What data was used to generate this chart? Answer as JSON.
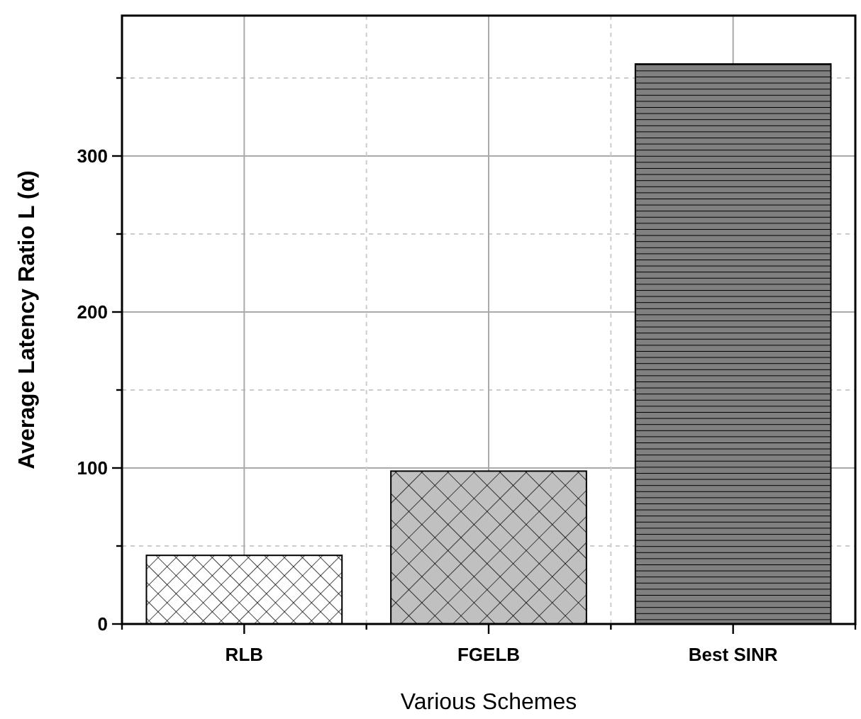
{
  "chart_data": {
    "type": "bar",
    "xlabel": "Various Schemes",
    "ylabel": "Average Latency Ratio L (α)",
    "categories": [
      "RLB",
      "FGELB",
      "Best SINR"
    ],
    "values": [
      44,
      98,
      359
    ],
    "colors": [
      "#ffffff",
      "#c0c0c0",
      "#808080"
    ],
    "ylim": [
      0,
      390
    ],
    "yticks": [
      0,
      {
        "value": 50,
        "label": null
      },
      100,
      {
        "value": 150,
        "label": null
      },
      200,
      {
        "value": 250,
        "label": null
      },
      300,
      {
        "value": 350,
        "label": null
      }
    ],
    "grid": true
  }
}
